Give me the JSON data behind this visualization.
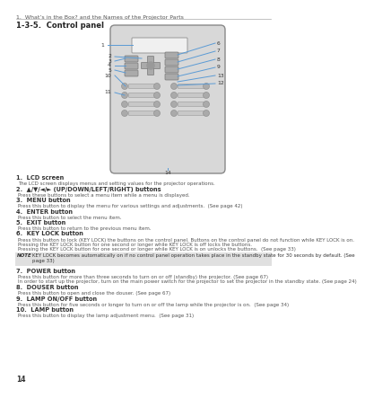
{
  "page_title": "1.  What’s in the Box? and the Names of the Projector Parts",
  "section_title": "1-3-5.  Control panel",
  "bg_color": "#ffffff",
  "page_number": "14",
  "items": [
    {
      "num": "1.",
      "bold": "LCD screen",
      "text": "The LCD screen displays menus and setting values for the projector operations."
    },
    {
      "num": "2.",
      "bold": "▲/▼/◄/► (UP/DOWN/LEFT/RIGHT) buttons",
      "text": "Press these buttons to select a menu item while a menu is displayed."
    },
    {
      "num": "3.",
      "bold": "MENU button",
      "text": "Press this button to display the menu for various settings and adjustments.  (See page 42)"
    },
    {
      "num": "4.",
      "bold": "ENTER button",
      "text": "Press this button to select the menu item."
    },
    {
      "num": "5.",
      "bold": "EXIT button",
      "text": "Press this button to return to the previous menu item."
    },
    {
      "num": "6.",
      "bold": "KEY LOCK button",
      "text": "Press this button to lock (KEY LOCK) the buttons on the control panel. Buttons on the control panel do not function while KEY LOCK is on.\nPressing the KEY LOCK button for one second or longer while KEY LOCK is off locks the buttons.\nPressing the KEY LOCK button for one second or longer while KEY LOCK is on unlocks the buttons.  (See page 33)"
    },
    {
      "num": "note",
      "bold": "NOTE",
      "text": "KEY LOCK becomes automatically on if no control panel operation takes place in the standby state for 30 seconds by default. (See page 33)"
    },
    {
      "num": "7.",
      "bold": "POWER button",
      "text": "Press this button for more than three seconds to turn on or off (standby) the projector. (See page 67)\nIn order to start up the projector, turn on the main power switch for the projector to set the projector in the standby state. (See page 24)"
    },
    {
      "num": "8.",
      "bold": "DOUSER button",
      "text": "Press this button to open and close the douser. (See page 67)"
    },
    {
      "num": "9.",
      "bold": "LAMP ON/OFF button",
      "text": "Press this button for five seconds or longer to turn on or off the lamp while the projector is on.  (See page 34)"
    },
    {
      "num": "10.",
      "bold": "LAMP button",
      "text": "Press this button to display the lamp adjustment menu.  (See page 31)"
    }
  ],
  "note_bg": "#e0e0e0",
  "blue": "#5b9bd5",
  "dark": "#222222",
  "gray_text": "#555555",
  "panel_fill": "#d8d8d8",
  "panel_edge": "#888888",
  "lcd_fill": "#f0f0f0",
  "btn_fill": "#aaaaaa",
  "btn_edge": "#777777"
}
